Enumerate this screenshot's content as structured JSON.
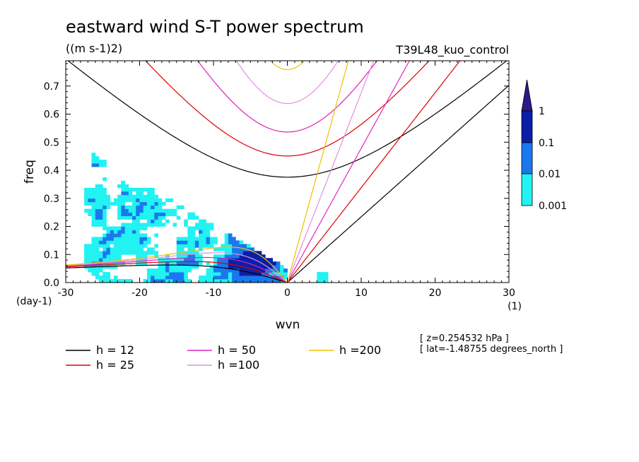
{
  "title": "eastward wind S-T power spectrum",
  "units": "((m s-1)2)",
  "experiment": "T39L48_kuo_control",
  "axes": {
    "xlabel": "wvn",
    "ylabel": "freq",
    "xunit": "(1)",
    "yunit": "(day-1)",
    "xticks": [
      "-30",
      "-20",
      "-10",
      "0",
      "10",
      "20",
      "30"
    ],
    "yticks": [
      "0.0",
      "0.1",
      "0.2",
      "0.3",
      "0.4",
      "0.5",
      "0.6",
      "0.7"
    ]
  },
  "info": {
    "z": "[ z=0.254532 hPa ]",
    "lat": "[ lat=-1.48755 degrees_north ]"
  },
  "colorbar": {
    "labels": [
      "1",
      "0.1",
      "0.01",
      "0.001"
    ],
    "colors": [
      "#2a1a8c",
      "#0a1fa8",
      "#1a78ee",
      "#22f2f2"
    ]
  },
  "legend": [
    {
      "label": "h = 12",
      "color": "#000000"
    },
    {
      "label": "h = 25",
      "color": "#e00000"
    },
    {
      "label": "h = 50",
      "color": "#e020c0"
    },
    {
      "label": "h =100",
      "color": "#e090e0"
    },
    {
      "label": "h =200",
      "color": "#f0c000"
    }
  ],
  "chart_data": {
    "type": "heatmap",
    "title": "eastward wind S-T power spectrum",
    "xlabel": "wvn",
    "ylabel": "freq",
    "xlim": [
      -30,
      30
    ],
    "ylim": [
      0,
      0.79
    ],
    "levels": [
      0.001,
      0.01,
      0.1,
      1
    ],
    "dispersion_curves": [
      {
        "name": "h = 12",
        "equivalent_depth": 12
      },
      {
        "name": "h = 25",
        "equivalent_depth": 25
      },
      {
        "name": "h = 50",
        "equivalent_depth": 50
      },
      {
        "name": "h = 100",
        "equivalent_depth": 100
      },
      {
        "name": "h = 200",
        "equivalent_depth": 200
      }
    ],
    "grid": false
  }
}
